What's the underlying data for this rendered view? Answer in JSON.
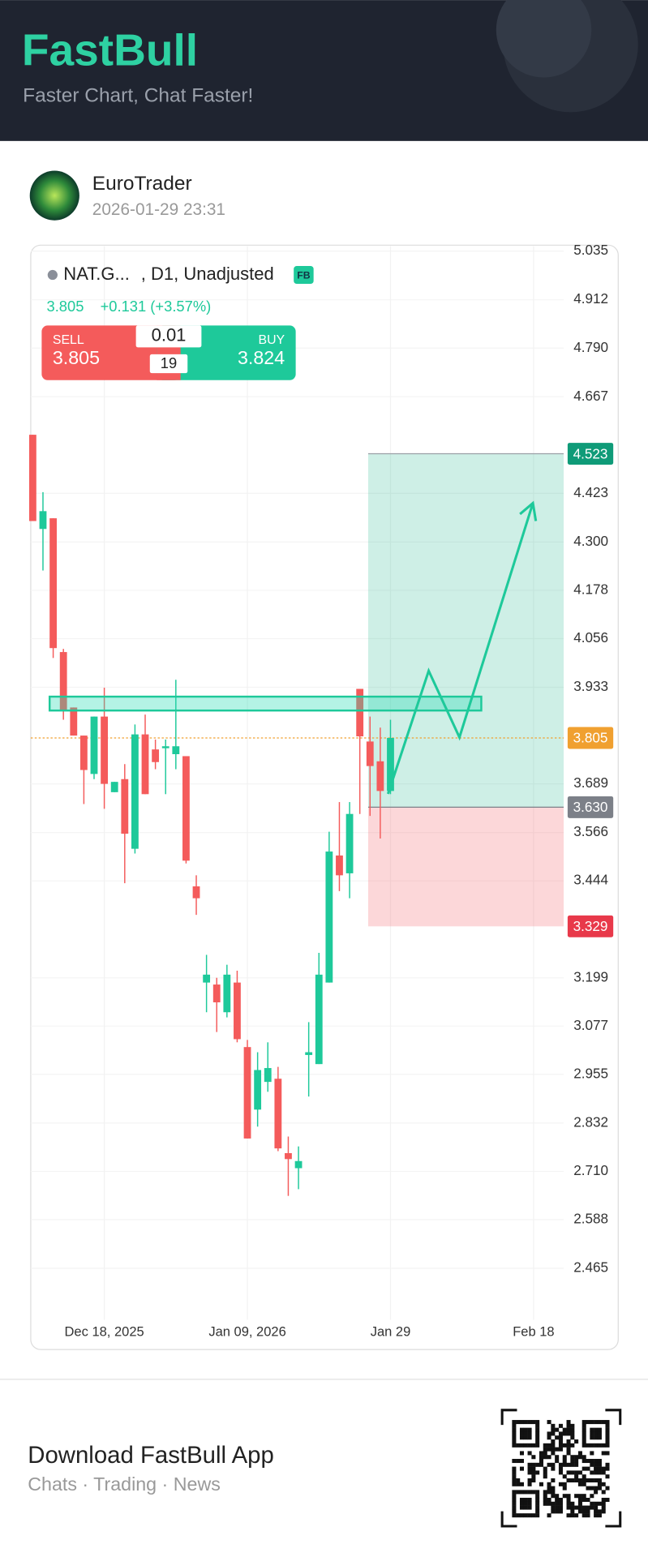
{
  "header": {
    "brand": "FastBull",
    "slogan": "Faster Chart, Chat Faster!"
  },
  "post": {
    "user": "EuroTrader",
    "time": "2026-01-29 23:31"
  },
  "quote": {
    "symbol": "NAT.G...",
    "meta": ", D1, Unadjusted",
    "badge": "FB",
    "price": "3.805",
    "change": "+0.131 (+3.57%)",
    "sell_label": "SELL",
    "sell": "3.805",
    "lot": "0.01",
    "spread": "19",
    "buy_label": "BUY",
    "buy": "3.824"
  },
  "chart_data": {
    "type": "candlestick",
    "open": [
      4.571,
      4.333,
      4.36,
      4.022,
      3.882,
      3.811,
      3.714,
      3.859,
      3.668,
      3.701,
      3.525,
      3.814,
      3.776,
      3.779,
      3.764,
      3.759,
      3.43,
      3.187,
      3.182,
      3.112,
      3.187,
      3.024,
      2.866,
      2.936,
      2.944,
      2.756,
      2.718,
      3.004,
      2.981,
      3.187,
      3.508,
      3.463,
      3.929,
      3.796,
      3.746,
      3.671
    ],
    "high": [
      4.571,
      4.426,
      4.36,
      4.03,
      3.882,
      3.811,
      3.859,
      3.932,
      3.694,
      3.739,
      3.839,
      3.864,
      3.801,
      3.801,
      3.952,
      3.759,
      3.458,
      3.257,
      3.199,
      3.232,
      3.217,
      3.042,
      3.011,
      3.036,
      2.974,
      2.798,
      2.773,
      3.087,
      3.262,
      3.568,
      3.643,
      3.643,
      3.929,
      3.859,
      3.831,
      3.851
    ],
    "low": [
      4.353,
      4.228,
      4.007,
      3.851,
      3.811,
      3.638,
      3.701,
      3.626,
      3.668,
      3.438,
      3.513,
      3.663,
      3.726,
      3.663,
      3.726,
      3.488,
      3.358,
      3.112,
      3.062,
      3.099,
      3.036,
      2.793,
      2.823,
      2.911,
      2.761,
      2.648,
      2.665,
      2.899,
      2.981,
      3.187,
      3.418,
      3.4,
      3.613,
      3.608,
      3.551,
      3.663
    ],
    "close": [
      4.353,
      4.378,
      4.032,
      3.876,
      3.811,
      3.724,
      3.859,
      3.689,
      3.694,
      3.563,
      3.814,
      3.663,
      3.744,
      3.784,
      3.784,
      3.495,
      3.4,
      3.207,
      3.137,
      3.207,
      3.044,
      2.793,
      2.966,
      2.971,
      2.768,
      2.741,
      2.736,
      3.011,
      3.207,
      3.518,
      3.458,
      3.613,
      3.809,
      3.734,
      3.671,
      3.805
    ],
    "up_color": "#1ec99a",
    "down_color": "#f45b5b",
    "xlim": [
      -0.5,
      52
    ],
    "xticks": [
      {
        "value": 7,
        "label": "Dec 18, 2025"
      },
      {
        "value": 21,
        "label": "Jan 09, 2026"
      },
      {
        "value": 35,
        "label": "Jan 29"
      },
      {
        "value": 49,
        "label": "Feb 18"
      }
    ],
    "ylim": [
      2.33,
      5.05
    ],
    "yticks": [
      5.035,
      4.912,
      {
        "value": 4.79,
        "label": "4.790"
      },
      4.667,
      4.423,
      {
        "value": 4.3,
        "label": "4.300"
      },
      4.178,
      4.056,
      3.933,
      3.689,
      3.566,
      3.444,
      3.199,
      3.077,
      2.955,
      2.832,
      {
        "value": 2.71,
        "label": "2.710"
      },
      2.588,
      2.465
    ],
    "grid": true,
    "price_lines": [
      {
        "value": 4.523,
        "color": "#0f9b78"
      },
      {
        "value": 3.805,
        "color": "#f0a030"
      },
      {
        "value": 3.63,
        "label": "3.630",
        "color": "#7c8088"
      },
      {
        "value": 3.329,
        "color": "#e8394a"
      }
    ]
  },
  "footer": {
    "title": "Download FastBull App",
    "subtitle": "Chats · Trading · News"
  }
}
